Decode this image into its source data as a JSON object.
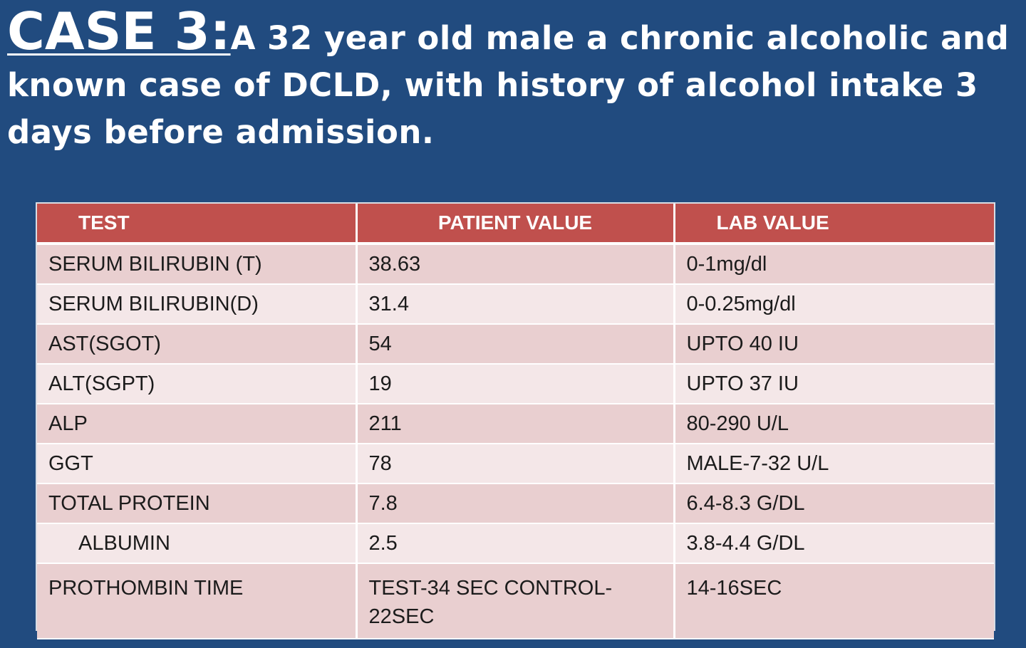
{
  "slide": {
    "case_label": "CASE 3:",
    "heading_text": "A 32 year old male a chronic alcoholic and known case of DCLD, with history of alcohol intake 3 days before admission."
  },
  "table": {
    "headers": [
      "TEST",
      "PATIENT VALUE",
      "LAB VALUE"
    ],
    "rows": [
      {
        "test": "SERUM BILIRUBIN (T)",
        "patient": "38.63",
        "lab": "0-1mg/dl"
      },
      {
        "test": "SERUM BILIRUBIN(D)",
        "patient": "31.4",
        "lab": "0-0.25mg/dl"
      },
      {
        "test": "AST(SGOT)",
        "patient": "54",
        "lab": "UPTO 40 IU"
      },
      {
        "test": "ALT(SGPT)",
        "patient": "19",
        "lab": "UPTO 37 IU"
      },
      {
        "test": "ALP",
        "patient": "211",
        "lab": "80-290 U/L"
      },
      {
        "test": "GGT",
        "patient": "78",
        "lab": "MALE-7-32 U/L"
      },
      {
        "test": "TOTAL PROTEIN",
        "patient": "7.8",
        "lab": "6.4-8.3 G/DL"
      },
      {
        "test": "ALBUMIN",
        "patient": "2.5",
        "lab": "3.8-4.4 G/DL"
      },
      {
        "test": "PROTHOMBIN TIME",
        "patient": "TEST-34 SEC CONTROL-22SEC",
        "lab": "14-16SEC"
      }
    ]
  },
  "colors": {
    "background": "#214b7f",
    "header": "#c0504d",
    "row_odd": "#e9cfd0",
    "row_even": "#f4e7e8"
  }
}
